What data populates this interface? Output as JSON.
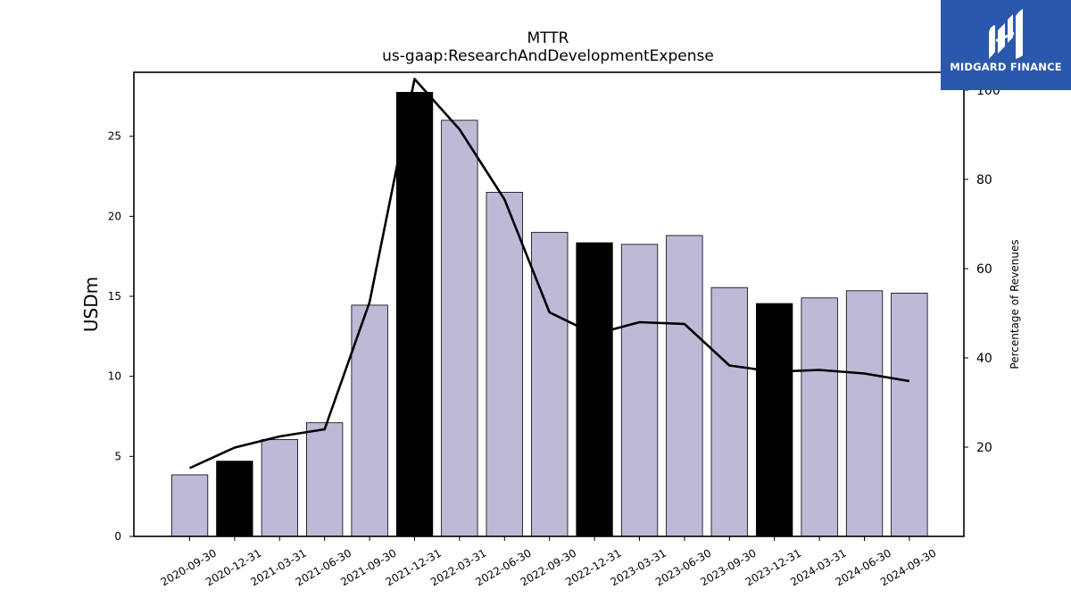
{
  "brand": {
    "name": "MIDGARD FINANCE",
    "logo_icon": "midgard-logo-icon",
    "bg_color": "#2a58ad"
  },
  "chart_data": {
    "type": "bar",
    "title": "MTTR",
    "subtitle": "us-gaap:ResearchAndDevelopmentExpense",
    "ylabel": "USDm",
    "y2label": "Percentage of Revenues",
    "ylim": [
      0,
      29
    ],
    "y2lim": [
      0,
      104
    ],
    "yticks": [
      0,
      5,
      10,
      15,
      20,
      25
    ],
    "y2ticks": [
      20,
      40,
      60,
      80,
      100
    ],
    "categories": [
      "2020-09-30",
      "2020-12-31",
      "2021-03-31",
      "2021-06-30",
      "2021-09-30",
      "2021-12-31",
      "2022-03-31",
      "2022-06-30",
      "2022-09-30",
      "2022-12-31",
      "2023-03-31",
      "2023-06-30",
      "2023-09-30",
      "2023-12-31",
      "2024-03-31",
      "2024-06-30",
      "2024-09-30"
    ],
    "series": [
      {
        "type": "bar",
        "axis": "left",
        "values": [
          3.85,
          4.7,
          6.05,
          7.1,
          14.45,
          27.75,
          26.0,
          21.5,
          19.0,
          18.35,
          18.25,
          18.8,
          15.55,
          14.55,
          14.9,
          15.35,
          15.2
        ],
        "highlighted": [
          false,
          true,
          false,
          false,
          false,
          true,
          false,
          false,
          false,
          true,
          false,
          false,
          false,
          true,
          false,
          false,
          false
        ]
      },
      {
        "type": "line",
        "axis": "right",
        "values": [
          15.3,
          19.9,
          22.4,
          24.0,
          52.5,
          102.5,
          91.2,
          75.5,
          50.2,
          45.3,
          48.0,
          47.6,
          38.3,
          36.9,
          37.3,
          36.5,
          34.8
        ]
      }
    ],
    "colors": {
      "bar": "#bdbad8",
      "bar_highlight": "#000000",
      "line": "#000000"
    },
    "grid": false,
    "legend": "none"
  }
}
